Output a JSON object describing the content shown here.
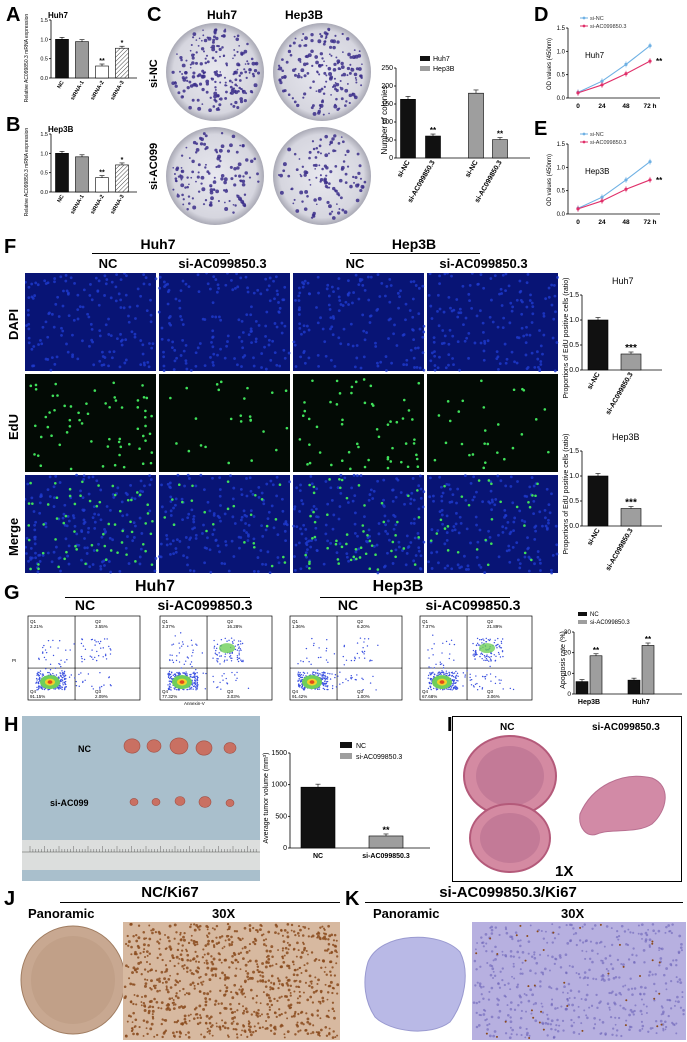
{
  "panel_labels": {
    "A": "A",
    "B": "B",
    "C": "C",
    "D": "D",
    "E": "E",
    "F": "F",
    "G": "G",
    "H": "H",
    "I": "I",
    "J": "J",
    "K": "K"
  },
  "colors": {
    "black": "#111111",
    "gray": "#9e9e9e",
    "hatch": "#e6e6e6",
    "blue_line": "#6fb1e4",
    "red_line": "#e0306a",
    "edu_blue": "#0b1a8c",
    "edu_green": "#3fe05a",
    "he_pink": "#d9849a",
    "ki67_brown": "#8a4a1c",
    "ki67_blue": "#8e90d4"
  },
  "panelA": {
    "title": "Huh7",
    "ylabel": "Relative AC099850.3 mRNA expression",
    "cats": [
      "NC",
      "siRNA-1",
      "siRNA-2",
      "siRNA-3"
    ],
    "sig": [
      "",
      "",
      "**",
      "*"
    ]
  },
  "panelB": {
    "title": "Hep3B",
    "ylabel": "Relative AC099850.3 mRNA expression",
    "cats": [
      "NC",
      "siRNA-1",
      "siRNA-2",
      "siRNA-3"
    ],
    "sig": [
      "",
      "",
      "**",
      "*"
    ]
  },
  "panelC": {
    "col_headers": [
      "Huh7",
      "Hep3B"
    ],
    "row_labels": [
      "si-NC",
      "si-AC099"
    ],
    "ylabel": "Number of colonies",
    "legend": [
      "Huh7",
      "Hep3B"
    ],
    "cats": [
      "si-NC",
      "si-AC099850.3",
      "si-NC",
      "si-AC099850.3"
    ],
    "sig": [
      "",
      "**",
      "",
      "**"
    ]
  },
  "panelD": {
    "title": "Huh7",
    "ylabel": "OD values (450nm)",
    "legend": [
      "si-NC",
      "si-AC099850.3"
    ],
    "sig": "**"
  },
  "panelE": {
    "title": "Hep3B",
    "ylabel": "OD values (450nm)",
    "legend": [
      "si-NC",
      "si-AC099850.3"
    ],
    "sig": "**"
  },
  "panelF": {
    "groups": [
      "Huh7",
      "Hep3B"
    ],
    "cols": [
      "NC",
      "si-AC099850.3",
      "NC",
      "si-AC099850.3"
    ],
    "rows": [
      "DAPI",
      "EdU",
      "Merge"
    ],
    "charts": [
      {
        "title": "Huh7",
        "ylabel": "Proportions of EdU positive cells (ratio)",
        "cats": [
          "si-NC",
          "si-AC099850.3"
        ],
        "sig": "***"
      },
      {
        "title": "Hep3B",
        "ylabel": "Proportions of EdU positive cells (ratio)",
        "cats": [
          "si-NC",
          "si-AC099850.3"
        ],
        "sig": "***"
      }
    ]
  },
  "panelG": {
    "groups": [
      "Huh7",
      "Hep3B"
    ],
    "cols": [
      "NC",
      "si-AC099850.3",
      "NC",
      "si-AC099850.3"
    ],
    "quadrants": [
      [
        "Q1",
        "3.21%",
        "Q2",
        "3.55%",
        "Q4",
        "91.15%",
        "Q3",
        "2.09%"
      ],
      [
        "Q1",
        "3.37%",
        "Q2",
        "16.28%",
        "Q4",
        "77.32%",
        "Q3",
        "3.03%"
      ],
      [
        "Q1",
        "1.36%",
        "Q2",
        "6.20%",
        "Q4",
        "91.42%",
        "Q3",
        "1.00%"
      ],
      [
        "Q1",
        "7.37%",
        "Q2",
        "21.89%",
        "Q4",
        "67.68%",
        "Q3",
        "3.06%"
      ]
    ],
    "xaxis": "Annexin-V",
    "yaxis": "PI",
    "chart": {
      "ylabel": "Apoptosis rate (%)",
      "legend": [
        "NC",
        "si-AC099850.3"
      ],
      "cats": [
        "Hep3B",
        "Huh7"
      ],
      "sig": [
        "**",
        "**"
      ]
    }
  },
  "panelH": {
    "rows": [
      "NC",
      "si-AC099"
    ],
    "ylabel": "Average tumor volume (mm³)",
    "legend": [
      "NC",
      "si-AC099850.3"
    ],
    "cats": [
      "NC",
      "si-AC099850.3"
    ],
    "sig": "**"
  },
  "panelI": {
    "labels": [
      "NC",
      "si-AC099850.3"
    ],
    "scale": "1X"
  },
  "panelJ": {
    "title": "NC/Ki67",
    "left": "Panoramic",
    "right": "30X"
  },
  "panelK": {
    "title": "si-AC099850.3/Ki67",
    "left": "Panoramic",
    "right": "30X"
  },
  "chart_data": [
    {
      "type": "bar",
      "panel": "A",
      "categories": [
        "NC",
        "siRNA-1",
        "siRNA-2",
        "siRNA-3"
      ],
      "values": [
        1.0,
        0.94,
        0.31,
        0.77
      ],
      "ylim": [
        0,
        1.5
      ],
      "yticks": [
        "0.0",
        "0.5",
        "1.0",
        "1.5"
      ]
    },
    {
      "type": "bar",
      "panel": "B",
      "categories": [
        "NC",
        "siRNA-1",
        "siRNA-2",
        "siRNA-3"
      ],
      "values": [
        1.0,
        0.91,
        0.37,
        0.7
      ],
      "ylim": [
        0,
        1.5
      ],
      "yticks": [
        "0.0",
        "0.5",
        "1.0",
        "1.5"
      ]
    },
    {
      "type": "bar",
      "panel": "C",
      "categories": [
        "si-NC",
        "si-AC099850.3",
        "si-NC",
        "si-AC099850.3"
      ],
      "series": [
        {
          "name": "Huh7",
          "values": [
            163,
            61,
            null,
            null
          ]
        },
        {
          "name": "Hep3B",
          "values": [
            null,
            null,
            180,
            51
          ]
        }
      ],
      "ylim": [
        0,
        250
      ],
      "yticks": [
        "0",
        "50",
        "100",
        "150",
        "200",
        "250"
      ]
    },
    {
      "type": "line",
      "panel": "D",
      "x": [
        "0",
        "24",
        "48",
        "72 h"
      ],
      "series": [
        {
          "name": "si-NC",
          "values": [
            0.12,
            0.36,
            0.72,
            1.12
          ]
        },
        {
          "name": "si-AC099850.3",
          "values": [
            0.11,
            0.28,
            0.52,
            0.79
          ]
        }
      ],
      "ylim": [
        0,
        1.5
      ],
      "yticks": [
        "0.0",
        "0.5",
        "1.0",
        "1.5"
      ]
    },
    {
      "type": "line",
      "panel": "E",
      "x": [
        "0",
        "24",
        "48",
        "72 h"
      ],
      "series": [
        {
          "name": "si-NC",
          "values": [
            0.12,
            0.36,
            0.73,
            1.12
          ]
        },
        {
          "name": "si-AC099850.3",
          "values": [
            0.11,
            0.28,
            0.53,
            0.73
          ]
        }
      ],
      "ylim": [
        0,
        1.5
      ],
      "yticks": [
        "0.0",
        "0.5",
        "1.0",
        "1.5"
      ]
    },
    {
      "type": "bar",
      "panel": "F-Huh7",
      "categories": [
        "si-NC",
        "si-AC099850.3"
      ],
      "values": [
        1.0,
        0.32
      ],
      "ylim": [
        0,
        1.5
      ],
      "yticks": [
        "0.0",
        "0.5",
        "1.0",
        "1.5"
      ]
    },
    {
      "type": "bar",
      "panel": "F-Hep3B",
      "categories": [
        "si-NC",
        "si-AC099850.3"
      ],
      "values": [
        1.0,
        0.35
      ],
      "ylim": [
        0,
        1.5
      ],
      "yticks": [
        "0.0",
        "0.5",
        "1.0",
        "1.5"
      ]
    },
    {
      "type": "bar",
      "panel": "G",
      "categories": [
        "Hep3B",
        "Huh7"
      ],
      "series": [
        {
          "name": "NC",
          "values": [
            6,
            6.7
          ]
        },
        {
          "name": "si-AC099850.3",
          "values": [
            18.5,
            23.5
          ]
        }
      ],
      "ylim": [
        0,
        30
      ],
      "yticks": [
        "0",
        "10",
        "20",
        "30"
      ]
    },
    {
      "type": "bar",
      "panel": "H",
      "categories": [
        "NC",
        "si-AC099850.3"
      ],
      "values": [
        960,
        190
      ],
      "ylim": [
        0,
        1500
      ],
      "yticks": [
        "0",
        "500",
        "1000",
        "1500"
      ]
    }
  ]
}
